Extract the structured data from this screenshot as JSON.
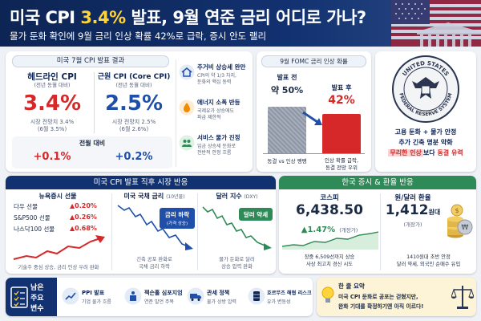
{
  "header": {
    "title_pre": "미국 CPI ",
    "title_highlight": "3.4%",
    "title_post": " 발표, 9월 연준 금리 어디로 가나?",
    "subtitle": "물가 둔화 확인에 9월 금리 인상 확률 42%로 급락, 증시 안도 랠리"
  },
  "cpi": {
    "title": "미국 7월 CPI 발표 결과",
    "headline": {
      "label": "헤드라인 CPI",
      "sub": "(전년 동월 대비)",
      "value": "3.4%",
      "note1": "시장 전망치 3.4%",
      "note2": "(6월 3.5%)"
    },
    "core": {
      "label": "근원 CPI (Core CPI)",
      "sub": "(전년 동월 대비)",
      "value": "2.5%",
      "note1": "시장 전망치 2.5%",
      "note2": "(6월 2.6%)"
    },
    "mom_label": "전월 대비",
    "mom_headline": "+0.1%",
    "mom_core": "+0.2%",
    "factors": [
      {
        "icon": "house-icon",
        "title": "주거비 상승세 완만",
        "desc1": "CPI의 약 1/3 차지,",
        "desc2": "둔화의 핵심 동력"
      },
      {
        "icon": "fuel-drop-icon",
        "title": "에너지 소폭 반등",
        "desc1": "국제유가 상승에도",
        "desc2": "파급 제한적"
      },
      {
        "icon": "people-icon",
        "title": "서비스 물가 진정",
        "desc1": "임금 상승세 둔화로",
        "desc2": "전반적 안정 흐름"
      }
    ]
  },
  "fomc": {
    "title": "9월 FOMC 금리 인상 확률",
    "before_label": "발표 전",
    "before_value": "약 50%",
    "before_pct": 50,
    "after_label": "발표 후",
    "after_value": "42%",
    "after_pct": 42,
    "before_caption": "동결 vs 인상 팽팽",
    "after_caption1": "인상 확률 급락,",
    "after_caption2": "동결 전망 우위"
  },
  "seal": {
    "top_text": "UNITED STATES",
    "bottom_text": "FEDERAL RESERVE SYSTEM",
    "line1": "고용 둔화 + 물가 안정",
    "line2": "추가 긴축 명분 약화",
    "line3_a": "무리한 인상",
    "line3_b": "보다 ",
    "line3_c": "동결 유력"
  },
  "market": {
    "title": "미국 CPI 발표 직후 시장 반응",
    "futures": {
      "title": "뉴욕증시 선물",
      "rows": [
        {
          "name": "다우 선물",
          "value": "▲0.20%"
        },
        {
          "name": "S&P500 선물",
          "value": "▲0.26%"
        },
        {
          "name": "나스닥100 선물",
          "value": "▲0.68%"
        }
      ],
      "caption": "기술주 중심 상승, 금리 인상 우려 완화"
    },
    "bond": {
      "title": "미국 국채 금리",
      "title_sub": "(10년물)",
      "badge1": "금리 하락",
      "badge2": "(가격 상승)",
      "caption1": "긴축 공포 완화로",
      "caption2": "국채 금리 하락"
    },
    "dxy": {
      "title": "달러 지수",
      "title_sub": "(DXY)",
      "badge": "달러 약세",
      "caption1": "물가 둔화로 달러",
      "caption2": "상승 압력 완화"
    }
  },
  "korea": {
    "title": "한국 증시 & 환율 반응",
    "kospi": {
      "title": "코스피",
      "value": "6,438.50",
      "change": "▲1.47%",
      "change_sub": "(개장가)",
      "caption1": "장중 6,509선까지 상승",
      "caption2": "사상 최고치 경신 시도"
    },
    "fx": {
      "title": "원/달러 환율",
      "value": "1,412",
      "unit": "원대",
      "value_sub": "(개장가)",
      "caption1": "1410원대 초반 안정",
      "caption2": "달러 약세, 외국인 순매수 유입"
    }
  },
  "bottom": {
    "remaining_label1": "남은",
    "remaining_label2": "주요",
    "remaining_label3": "변수",
    "items": [
      {
        "icon": "chart-icon",
        "title": "PPI 발표",
        "desc": "기업 물가 흐름"
      },
      {
        "icon": "podium-icon",
        "title": "잭슨홀 심포지엄",
        "desc": "연준 발언 주목"
      },
      {
        "icon": "truck-icon",
        "title": "관세 정책",
        "desc": "물가 상방 압력"
      },
      {
        "icon": "oil-barrel-icon",
        "title": "호르무즈 해협 리스크",
        "desc": "유가 변동성"
      }
    ],
    "summary_title": "한 줄 요약",
    "summary_line1": "미국 CPI 둔화로 공포는 걷혔지만,",
    "summary_line2": "완화 기대를 확정하기엔 아직 이르다!"
  },
  "colors": {
    "navy": "#0d2554",
    "accent": "#ffd43b",
    "up": "#d62828",
    "down": "#1f4fa8",
    "green": "#2e8b57"
  }
}
